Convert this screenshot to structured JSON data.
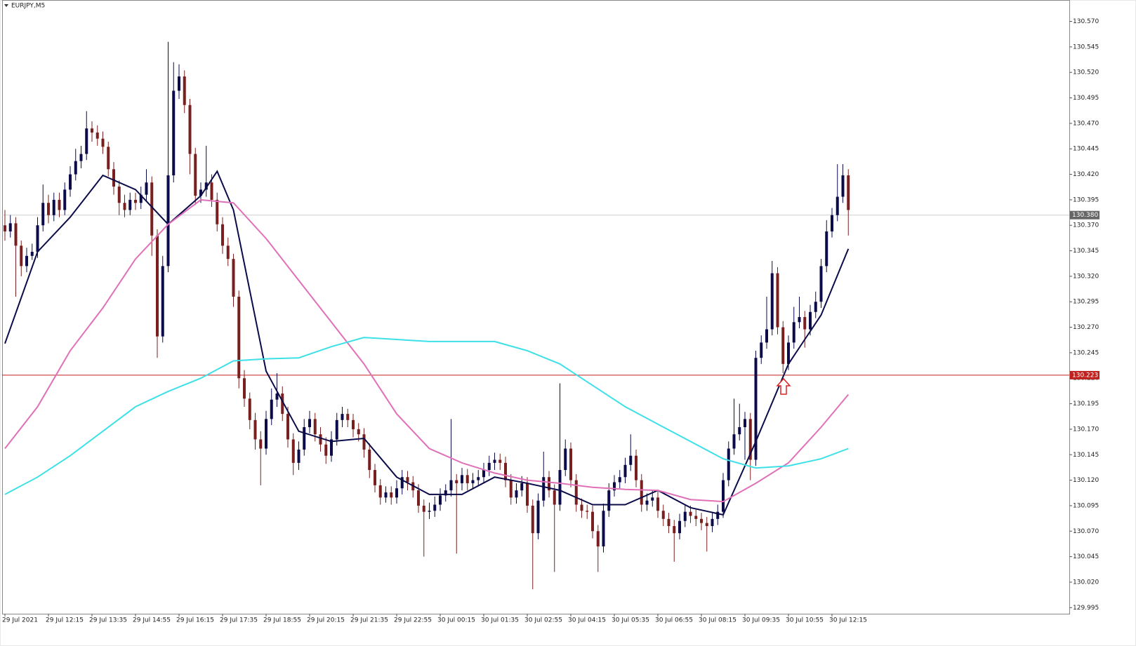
{
  "chart_data": {
    "type": "candlestick",
    "title": "EURJPY,M5",
    "categories": [
      "29 Jul 2021",
      null,
      null,
      null,
      null,
      null,
      null,
      null,
      "29 Jul 12:15",
      null,
      null,
      null,
      null,
      null,
      null,
      null,
      "29 Jul 13:35",
      null,
      null,
      null,
      null,
      null,
      null,
      null,
      "29 Jul 14:55",
      null,
      null,
      null,
      null,
      null,
      null,
      null,
      "29 Jul 16:15",
      null,
      null,
      null,
      null,
      null,
      null,
      null,
      "29 Jul 17:35",
      null,
      null,
      null,
      null,
      null,
      null,
      null,
      "29 Jul 18:55",
      null,
      null,
      null,
      null,
      null,
      null,
      null,
      "29 Jul 20:15",
      null,
      null,
      null,
      null,
      null,
      null,
      null,
      "29 Jul 21:35",
      null,
      null,
      null,
      null,
      null,
      null,
      null,
      "29 Jul 22:55",
      null,
      null,
      null,
      null,
      null,
      null,
      null,
      "30 Jul 00:15",
      null,
      null,
      null,
      null,
      null,
      null,
      null,
      "30 Jul 01:35",
      null,
      null,
      null,
      null,
      null,
      null,
      null,
      "30 Jul 02:55",
      null,
      null,
      null,
      null,
      null,
      null,
      null,
      "30 Jul 04:15",
      null,
      null,
      null,
      null,
      null,
      null,
      null,
      "30 Jul 05:35",
      null,
      null,
      null,
      null,
      null,
      null,
      null,
      "30 Jul 06:55",
      null,
      null,
      null,
      null,
      null,
      null,
      null,
      "30 Jul 08:15",
      null,
      null,
      null,
      null,
      null,
      null,
      null,
      "30 Jul 09:35",
      null,
      null,
      null,
      null,
      null,
      null,
      null,
      "30 Jul 10:55",
      null,
      null,
      null,
      null,
      null,
      null,
      null,
      "30 Jul 12:15",
      null,
      null,
      null
    ],
    "ohlc": [
      [
        130.37,
        130.385,
        130.355,
        130.364
      ],
      [
        130.364,
        130.38,
        130.358,
        130.372
      ],
      [
        130.372,
        130.378,
        130.3,
        130.35
      ],
      [
        130.35,
        130.355,
        130.32,
        130.33
      ],
      [
        130.33,
        130.348,
        130.324,
        130.34
      ],
      [
        130.34,
        130.352,
        130.336,
        130.344
      ],
      [
        130.344,
        130.378,
        130.338,
        130.37
      ],
      [
        130.37,
        130.41,
        130.364,
        130.392
      ],
      [
        130.392,
        130.4,
        130.372,
        130.38
      ],
      [
        130.38,
        130.402,
        130.374,
        130.395
      ],
      [
        130.395,
        130.402,
        130.378,
        130.385
      ],
      [
        130.385,
        130.412,
        130.38,
        130.405
      ],
      [
        130.405,
        130.428,
        130.398,
        130.42
      ],
      [
        130.42,
        130.445,
        130.414,
        130.433
      ],
      [
        130.433,
        130.448,
        130.426,
        130.44
      ],
      [
        130.44,
        130.482,
        130.434,
        130.465
      ],
      [
        130.465,
        130.472,
        130.452,
        130.461
      ],
      [
        130.461,
        130.468,
        130.448,
        130.455
      ],
      [
        130.455,
        130.462,
        130.44,
        130.447
      ],
      [
        130.447,
        130.452,
        130.418,
        130.425
      ],
      [
        130.425,
        130.432,
        130.4,
        130.408
      ],
      [
        130.408,
        130.414,
        130.38,
        130.392
      ],
      [
        130.392,
        130.4,
        130.378,
        130.385
      ],
      [
        130.385,
        130.402,
        130.38,
        130.395
      ],
      [
        130.395,
        130.402,
        130.385,
        130.392
      ],
      [
        130.392,
        130.408,
        130.386,
        130.4
      ],
      [
        130.4,
        130.425,
        130.394,
        130.412
      ],
      [
        130.412,
        130.418,
        130.34,
        130.36
      ],
      [
        130.36,
        130.366,
        130.24,
        130.261
      ],
      [
        130.261,
        130.34,
        130.255,
        130.33
      ],
      [
        130.33,
        130.55,
        130.324,
        130.419
      ],
      [
        130.419,
        130.53,
        130.412,
        130.502
      ],
      [
        130.502,
        130.528,
        130.494,
        130.516
      ],
      [
        130.516,
        130.522,
        130.48,
        130.488
      ],
      [
        130.488,
        130.494,
        130.42,
        130.44
      ],
      [
        130.44,
        130.446,
        130.39,
        130.399
      ],
      [
        130.399,
        130.412,
        130.392,
        130.405
      ],
      [
        130.405,
        130.448,
        130.398,
        130.412
      ],
      [
        130.412,
        130.42,
        130.388,
        130.395
      ],
      [
        130.395,
        130.402,
        130.364,
        130.371
      ],
      [
        130.371,
        130.378,
        130.342,
        130.35
      ],
      [
        130.35,
        130.358,
        130.33,
        130.337
      ],
      [
        130.337,
        130.342,
        130.29,
        130.3
      ],
      [
        130.3,
        130.306,
        130.21,
        130.22
      ],
      [
        130.22,
        130.228,
        130.192,
        130.2
      ],
      [
        130.2,
        130.206,
        130.17,
        130.179
      ],
      [
        130.179,
        130.186,
        130.15,
        130.16
      ],
      [
        130.16,
        130.168,
        130.115,
        130.151
      ],
      [
        130.151,
        130.188,
        130.145,
        130.18
      ],
      [
        130.18,
        130.21,
        130.174,
        130.199
      ],
      [
        130.199,
        130.225,
        130.192,
        130.205
      ],
      [
        130.205,
        130.212,
        130.178,
        130.185
      ],
      [
        130.185,
        130.192,
        130.152,
        130.16
      ],
      [
        130.16,
        130.166,
        130.125,
        130.137
      ],
      [
        130.137,
        130.158,
        130.13,
        130.15
      ],
      [
        130.15,
        130.18,
        130.144,
        130.172
      ],
      [
        130.172,
        130.188,
        130.166,
        130.18
      ],
      [
        130.18,
        130.186,
        130.158,
        130.165
      ],
      [
        130.165,
        130.172,
        130.148,
        130.155
      ],
      [
        130.155,
        130.162,
        130.136,
        130.144
      ],
      [
        130.144,
        130.168,
        130.138,
        130.16
      ],
      [
        130.16,
        130.186,
        130.154,
        130.179
      ],
      [
        130.179,
        130.192,
        130.172,
        130.185
      ],
      [
        130.185,
        130.19,
        130.172,
        130.179
      ],
      [
        130.179,
        130.185,
        130.162,
        130.17
      ],
      [
        130.17,
        130.176,
        130.158,
        130.165
      ],
      [
        130.165,
        130.171,
        130.142,
        130.15
      ],
      [
        130.15,
        130.156,
        130.122,
        130.13
      ],
      [
        130.13,
        130.136,
        130.108,
        130.115
      ],
      [
        130.115,
        130.121,
        130.096,
        130.103
      ],
      [
        130.103,
        130.114,
        130.098,
        130.108
      ],
      [
        130.108,
        130.114,
        130.096,
        130.103
      ],
      [
        130.103,
        130.12,
        130.097,
        130.112
      ],
      [
        130.112,
        130.13,
        130.106,
        130.123
      ],
      [
        130.123,
        130.129,
        130.11,
        130.118
      ],
      [
        130.118,
        130.124,
        130.103,
        130.11
      ],
      [
        130.11,
        130.116,
        130.088,
        130.095
      ],
      [
        130.095,
        130.101,
        130.045,
        130.089
      ],
      [
        130.089,
        130.098,
        130.082,
        130.09
      ],
      [
        130.09,
        130.104,
        130.084,
        130.096
      ],
      [
        130.096,
        130.112,
        130.09,
        130.105
      ],
      [
        130.105,
        130.116,
        130.099,
        130.11
      ],
      [
        130.11,
        130.18,
        130.104,
        130.12
      ],
      [
        130.12,
        130.126,
        130.048,
        130.117
      ],
      [
        130.117,
        130.132,
        130.11,
        130.125
      ],
      [
        130.125,
        130.131,
        130.11,
        130.117
      ],
      [
        130.117,
        130.127,
        130.111,
        130.12
      ],
      [
        130.12,
        130.13,
        130.114,
        130.123
      ],
      [
        130.123,
        130.137,
        130.117,
        130.13
      ],
      [
        130.13,
        130.144,
        130.124,
        130.137
      ],
      [
        130.137,
        130.147,
        130.13,
        130.14
      ],
      [
        130.14,
        130.146,
        130.13,
        130.137
      ],
      [
        130.137,
        130.143,
        130.113,
        130.12
      ],
      [
        130.12,
        130.126,
        130.096,
        130.103
      ],
      [
        130.103,
        130.117,
        130.097,
        130.11
      ],
      [
        130.11,
        130.124,
        130.104,
        130.117
      ],
      [
        130.117,
        130.123,
        130.088,
        130.095
      ],
      [
        130.095,
        130.101,
        130.013,
        130.068
      ],
      [
        130.068,
        130.107,
        130.062,
        130.1
      ],
      [
        130.1,
        130.148,
        130.094,
        130.123
      ],
      [
        130.123,
        130.129,
        130.103,
        130.11
      ],
      [
        130.11,
        130.116,
        130.03,
        130.096
      ],
      [
        130.096,
        130.215,
        130.09,
        130.13
      ],
      [
        130.13,
        130.16,
        130.124,
        130.151
      ],
      [
        130.151,
        130.157,
        130.113,
        130.12
      ],
      [
        130.12,
        130.126,
        130.089,
        130.096
      ],
      [
        130.096,
        130.102,
        130.083,
        130.09
      ],
      [
        130.09,
        130.096,
        130.082,
        130.089
      ],
      [
        130.089,
        130.095,
        130.063,
        130.07
      ],
      [
        130.07,
        130.076,
        130.03,
        130.055
      ],
      [
        130.055,
        130.097,
        130.049,
        130.09
      ],
      [
        130.09,
        130.117,
        130.084,
        130.11
      ],
      [
        130.11,
        130.125,
        130.104,
        130.118
      ],
      [
        130.118,
        130.13,
        130.112,
        130.123
      ],
      [
        130.123,
        130.142,
        130.117,
        130.135
      ],
      [
        130.135,
        130.165,
        130.129,
        130.144
      ],
      [
        130.144,
        130.15,
        130.113,
        130.12
      ],
      [
        130.12,
        130.126,
        130.089,
        130.096
      ],
      [
        130.096,
        130.107,
        130.09,
        130.1
      ],
      [
        130.1,
        130.11,
        130.094,
        130.103
      ],
      [
        130.103,
        130.109,
        130.083,
        130.09
      ],
      [
        130.09,
        130.096,
        130.075,
        130.082
      ],
      [
        130.082,
        130.088,
        130.068,
        130.075
      ],
      [
        130.075,
        130.081,
        130.04,
        130.068
      ],
      [
        130.068,
        130.087,
        130.062,
        130.08
      ],
      [
        130.08,
        130.096,
        130.074,
        130.089
      ],
      [
        130.089,
        130.095,
        130.078,
        130.085
      ],
      [
        130.085,
        130.091,
        130.075,
        130.082
      ],
      [
        130.082,
        130.088,
        130.071,
        130.078
      ],
      [
        130.078,
        130.084,
        130.05,
        130.075
      ],
      [
        130.075,
        130.089,
        130.069,
        130.082
      ],
      [
        130.082,
        130.096,
        130.076,
        130.089
      ],
      [
        130.089,
        130.127,
        130.083,
        130.12
      ],
      [
        130.12,
        130.158,
        130.114,
        130.151
      ],
      [
        130.151,
        130.2,
        130.145,
        130.165
      ],
      [
        130.165,
        130.195,
        130.159,
        130.172
      ],
      [
        130.172,
        130.187,
        130.14,
        130.18
      ],
      [
        130.18,
        130.186,
        130.12,
        130.14
      ],
      [
        130.14,
        130.247,
        130.134,
        130.24
      ],
      [
        130.24,
        130.262,
        130.234,
        130.255
      ],
      [
        130.255,
        130.3,
        130.249,
        130.268
      ],
      [
        130.268,
        130.335,
        130.262,
        130.323
      ],
      [
        130.323,
        130.329,
        130.263,
        130.27
      ],
      [
        130.27,
        130.276,
        130.225,
        130.234
      ],
      [
        130.234,
        130.262,
        130.228,
        130.255
      ],
      [
        130.255,
        130.29,
        130.249,
        130.275
      ],
      [
        130.275,
        130.3,
        130.269,
        130.28
      ],
      [
        130.28,
        130.286,
        130.25,
        130.268
      ],
      [
        130.268,
        130.292,
        130.262,
        130.285
      ],
      [
        130.285,
        130.305,
        130.279,
        130.295
      ],
      [
        130.295,
        130.337,
        130.289,
        130.33
      ],
      [
        130.33,
        130.375,
        130.324,
        130.364
      ],
      [
        130.364,
        130.387,
        130.358,
        130.38
      ],
      [
        130.38,
        130.43,
        130.374,
        130.398
      ],
      [
        130.398,
        130.43,
        130.392,
        130.419
      ],
      [
        130.419,
        130.425,
        130.36,
        130.385
      ]
    ],
    "up_color": "#0b0b4a",
    "down_color": "#7a1f1f",
    "series": [
      {
        "color": "#0b0b4a",
        "x": [
          0,
          6,
          12,
          18,
          24,
          30,
          36,
          39,
          42,
          48,
          54,
          60,
          66,
          72,
          78,
          84,
          90,
          96,
          102,
          108,
          114,
          120,
          126,
          132,
          138,
          144,
          150,
          155
        ],
        "values": [
          130.254,
          130.344,
          130.378,
          130.419,
          130.405,
          130.371,
          130.399,
          130.423,
          130.385,
          130.227,
          130.168,
          130.158,
          130.161,
          130.123,
          130.106,
          130.106,
          130.123,
          130.117,
          130.11,
          130.096,
          130.096,
          130.11,
          130.093,
          130.086,
          130.158,
          130.234,
          130.282,
          130.347
        ]
      },
      {
        "color": "#e070b8",
        "x": [
          0,
          6,
          12,
          18,
          24,
          30,
          36,
          42,
          48,
          54,
          60,
          66,
          72,
          78,
          84,
          90,
          96,
          102,
          108,
          114,
          120,
          126,
          132,
          138,
          144,
          150,
          155
        ],
        "values": [
          130.151,
          130.192,
          130.247,
          130.289,
          130.337,
          130.371,
          130.395,
          130.392,
          130.357,
          130.316,
          130.275,
          130.234,
          130.185,
          130.151,
          130.137,
          130.127,
          130.12,
          130.117,
          130.113,
          130.111,
          130.11,
          130.101,
          130.099,
          130.117,
          130.137,
          130.172,
          130.204
        ]
      },
      {
        "color": "#3ee0e8",
        "x": [
          0,
          6,
          12,
          18,
          24,
          30,
          36,
          42,
          48,
          54,
          60,
          66,
          72,
          78,
          84,
          90,
          96,
          102,
          108,
          114,
          120,
          126,
          132,
          138,
          144,
          150,
          155
        ],
        "values": [
          130.106,
          130.123,
          130.144,
          130.168,
          130.192,
          130.207,
          130.22,
          130.237,
          130.239,
          130.24,
          130.251,
          130.26,
          130.258,
          130.256,
          130.256,
          130.256,
          130.247,
          130.234,
          130.213,
          130.192,
          130.175,
          130.158,
          130.141,
          130.132,
          130.134,
          130.141,
          130.151
        ]
      }
    ],
    "ylim": [
      129.989,
      130.591
    ],
    "yticks": [
      129.995,
      {
        "value": 130.02,
        "label": "130.020"
      },
      130.045,
      {
        "value": 130.07,
        "label": "130.070"
      },
      130.095,
      {
        "value": 130.12,
        "label": "130.120"
      },
      130.145,
      {
        "value": 130.17,
        "label": "130.170"
      },
      130.195,
      {
        "value": 130.22,
        "label": "130.220"
      },
      130.245,
      {
        "value": 130.27,
        "label": "130.270"
      },
      130.295,
      {
        "value": 130.32,
        "label": "130.320"
      },
      130.345,
      {
        "value": 130.37,
        "label": "130.370"
      },
      130.395,
      {
        "value": 130.42,
        "label": "130.420"
      },
      130.445,
      {
        "value": 130.47,
        "label": "130.470"
      },
      130.495,
      {
        "value": 130.52,
        "label": "130.520"
      },
      130.545,
      {
        "value": 130.57,
        "label": "130.570"
      }
    ],
    "current_price": {
      "value": 130.38,
      "label": "130.380",
      "color": "#c8c8c8"
    },
    "level": {
      "value": 130.223,
      "label": "130.223",
      "color": "#c0201e"
    }
  }
}
